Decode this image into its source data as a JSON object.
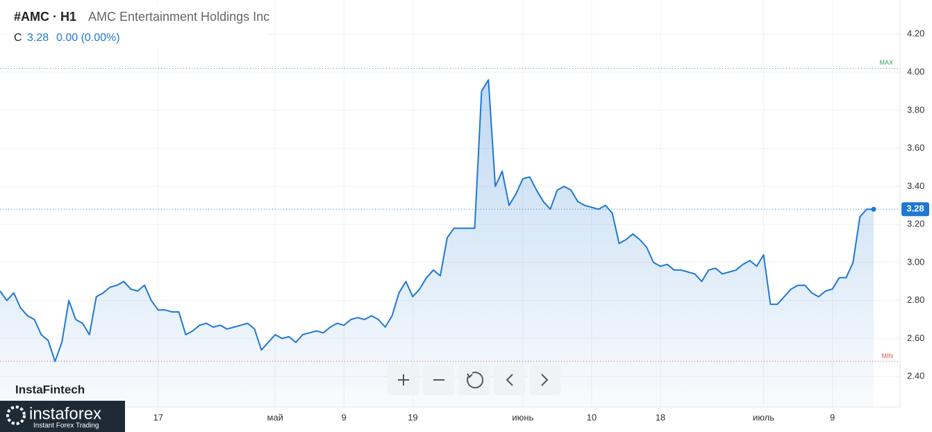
{
  "chart_data": {
    "type": "line",
    "title": "#AMC · H1",
    "subtitle": "AMC Entertainment Holdings Inc",
    "ohlc_label": "C",
    "change_text": "0.00 (0.00%)",
    "brand": "InstaFintech",
    "logo_text": "instaforex",
    "logo_subtext": "Instant Forex Trading",
    "categories": [
      null,
      null,
      null,
      null,
      null,
      null,
      null,
      null,
      null,
      null,
      null,
      null,
      null,
      null,
      null,
      null,
      null,
      null,
      null,
      null,
      null,
      null,
      null,
      "17",
      null,
      null,
      null,
      null,
      null,
      null,
      null,
      null,
      null,
      null,
      null,
      null,
      null,
      null,
      null,
      null,
      "май",
      null,
      null,
      null,
      null,
      null,
      null,
      null,
      null,
      null,
      "9",
      null,
      null,
      null,
      null,
      null,
      null,
      null,
      null,
      null,
      "19",
      null,
      null,
      null,
      null,
      null,
      null,
      null,
      null,
      null,
      null,
      null,
      null,
      null,
      null,
      null,
      "июнь",
      null,
      null,
      null,
      null,
      null,
      null,
      null,
      null,
      null,
      "10",
      null,
      null,
      null,
      null,
      null,
      null,
      null,
      null,
      null,
      "18",
      null,
      null,
      null,
      null,
      null,
      null,
      null,
      null,
      null,
      null,
      null,
      null,
      null,
      null,
      "июль",
      null,
      null,
      null,
      null,
      null,
      null,
      null,
      null,
      null,
      "9",
      null,
      null,
      null,
      null,
      null,
      null
    ],
    "series": [
      {
        "name": "AMC",
        "color": "#1f78d1",
        "values": [
          2.85,
          2.8,
          2.84,
          2.76,
          2.72,
          2.7,
          2.62,
          2.59,
          2.48,
          2.58,
          2.8,
          2.7,
          2.68,
          2.62,
          2.82,
          2.84,
          2.87,
          2.88,
          2.9,
          2.86,
          2.85,
          2.88,
          2.8,
          2.75,
          2.75,
          2.74,
          2.74,
          2.62,
          2.64,
          2.67,
          2.68,
          2.66,
          2.67,
          2.65,
          2.66,
          2.67,
          2.68,
          2.65,
          2.54,
          2.58,
          2.62,
          2.6,
          2.61,
          2.58,
          2.62,
          2.63,
          2.64,
          2.63,
          2.66,
          2.68,
          2.67,
          2.7,
          2.71,
          2.7,
          2.72,
          2.7,
          2.66,
          2.72,
          2.84,
          2.9,
          2.82,
          2.86,
          2.92,
          2.96,
          2.93,
          3.13,
          3.18,
          3.18,
          3.18,
          3.18,
          3.9,
          3.96,
          3.4,
          3.48,
          3.3,
          3.36,
          3.44,
          3.45,
          3.38,
          3.32,
          3.28,
          3.38,
          3.4,
          3.38,
          3.32,
          3.3,
          3.29,
          3.28,
          3.3,
          3.26,
          3.1,
          3.12,
          3.15,
          3.12,
          3.08,
          3.0,
          2.98,
          2.99,
          2.96,
          2.96,
          2.95,
          2.94,
          2.9,
          2.96,
          2.97,
          2.94,
          2.95,
          2.96,
          2.99,
          3.01,
          2.98,
          3.04,
          2.78,
          2.78,
          2.82,
          2.86,
          2.88,
          2.88,
          2.84,
          2.82,
          2.85,
          2.86,
          2.92,
          2.92,
          3.0,
          3.24,
          3.28,
          3.28
        ]
      }
    ],
    "max_line": {
      "label": "MAX",
      "value": 4.02,
      "color": "#2e9e5b"
    },
    "min_line": {
      "label": "MIN",
      "value": 2.48,
      "color": "#d9534f"
    },
    "ylim": [
      2.24,
      4.38
    ],
    "yticks": [
      {
        "value": 2.4,
        "label": "2.40"
      },
      {
        "value": 2.6,
        "label": "2.60"
      },
      {
        "value": 2.8,
        "label": "2.80"
      },
      {
        "value": 3.0,
        "label": "3.00"
      },
      {
        "value": 3.2,
        "label": "3.20"
      },
      {
        "value": 3.4,
        "label": "3.40"
      },
      {
        "value": 3.6,
        "label": "3.60"
      },
      {
        "value": 3.8,
        "label": "3.80"
      },
      {
        "value": 4.0,
        "label": "4.00"
      },
      {
        "value": 4.2,
        "label": "4.20"
      }
    ],
    "grid": true
  }
}
